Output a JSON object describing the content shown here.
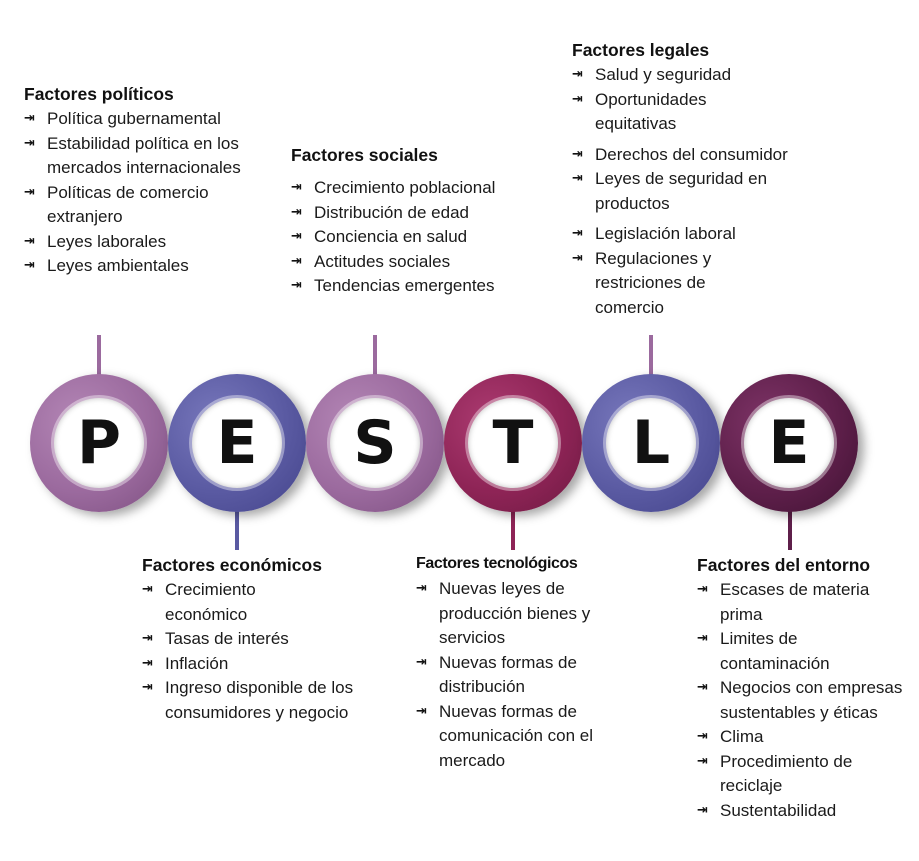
{
  "arrow_glyph": "⇥",
  "colors": {
    "purple_light": "#9b6a9e",
    "indigo": "#5a5aa2",
    "crimson": "#8e2456",
    "dark_plum": "#5e1f4a"
  },
  "circles": [
    {
      "letter": "P",
      "color": "#9b6a9e"
    },
    {
      "letter": "E",
      "color": "#5a5aa2"
    },
    {
      "letter": "S",
      "color": "#9b6a9e"
    },
    {
      "letter": "T",
      "color": "#8e2456"
    },
    {
      "letter": "L",
      "color": "#5a5aa2"
    },
    {
      "letter": "E",
      "color": "#5e1f4a"
    }
  ],
  "politicos": {
    "title": "Factores políticos",
    "items": [
      "Política gubernamental",
      "Estabilidad política en los mercados internacionales",
      "Políticas de comercio extranjero",
      "Leyes laborales",
      "Leyes ambientales"
    ]
  },
  "sociales": {
    "title": "Factores sociales",
    "items": [
      "Crecimiento poblacional",
      "Distribución de edad",
      "Conciencia en salud",
      "Actitudes sociales",
      "Tendencias emergentes"
    ]
  },
  "legales": {
    "title": "Factores legales",
    "items": [
      "Salud y seguridad",
      "Oportunidades equitativas",
      "Derechos del consumidor",
      "Leyes de seguridad en productos",
      "Legislación laboral",
      "Regulaciones y restriciones de comercio"
    ]
  },
  "economicos": {
    "title": "Factores económicos",
    "items": [
      "Crecimiento económico",
      "Tasas de interés",
      "Inflación",
      "Ingreso disponible de los consumidores y negocio"
    ]
  },
  "tecnologicos": {
    "title": "Factores tecnológicos",
    "items": [
      "Nuevas leyes de producción bienes y servicios",
      "Nuevas formas de distribución",
      "Nuevas formas de comunicación con el mercado"
    ]
  },
  "entorno": {
    "title": "Factores del entorno",
    "items": [
      "Escases de materia prima",
      "Limites de contaminación",
      "Negocios con empresas sustentables y éticas",
      "Clima",
      "Procedimiento de reciclaje",
      "Sustentabilidad"
    ]
  }
}
